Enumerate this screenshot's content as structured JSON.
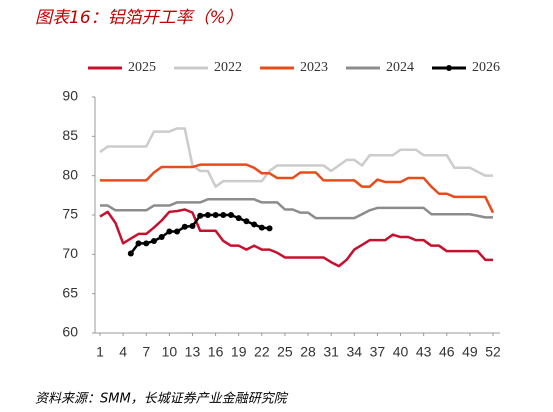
{
  "chart_data": {
    "type": "line",
    "title": "图表16：铝箔开工率（%）",
    "source": "资料来源：SMM，长城证券产业金融研究院",
    "x": [
      1,
      2,
      3,
      4,
      5,
      6,
      7,
      8,
      9,
      10,
      11,
      12,
      13,
      14,
      15,
      16,
      17,
      18,
      19,
      20,
      21,
      22,
      23,
      24,
      25,
      26,
      27,
      28,
      29,
      30,
      31,
      32,
      33,
      34,
      35,
      36,
      37,
      38,
      39,
      40,
      41,
      42,
      43,
      44,
      45,
      46,
      47,
      48,
      49,
      50,
      51,
      52
    ],
    "xlim": [
      1,
      52
    ],
    "xticks": [
      1,
      4,
      7,
      10,
      13,
      16,
      19,
      22,
      25,
      28,
      31,
      34,
      37,
      40,
      43,
      46,
      49,
      52
    ],
    "ylim": [
      60,
      90
    ],
    "yticks": [
      60,
      65,
      70,
      75,
      80,
      85,
      90
    ],
    "grid": false,
    "legend": "top",
    "series": [
      {
        "name": "2025",
        "color": "#c8102e",
        "marker": false,
        "values": [
          74.8,
          75.4,
          74,
          71.4,
          72,
          72.6,
          72.6,
          73.4,
          74.3,
          75.4,
          75.5,
          75.7,
          75.3,
          73,
          73,
          73,
          71.7,
          71.1,
          71.1,
          70.6,
          71.1,
          70.6,
          70.6,
          70.2,
          69.6,
          69.6,
          69.6,
          69.6,
          69.6,
          69.6,
          69,
          68.5,
          69.3,
          70.6,
          71.2,
          71.8,
          71.8,
          71.8,
          72.5,
          72.2,
          72.2,
          71.8,
          71.8,
          71.1,
          71.1,
          70.4,
          70.4,
          70.4,
          70.4,
          70.4,
          69.3,
          69.3
        ]
      },
      {
        "name": "2022",
        "color": "#cccccc",
        "marker": false,
        "values": [
          83,
          83.7,
          83.7,
          83.7,
          83.7,
          83.7,
          83.7,
          85.6,
          85.6,
          85.6,
          86,
          86,
          81.3,
          80.6,
          80.6,
          78.6,
          79.3,
          79.3,
          79.3,
          79.3,
          79.3,
          79.3,
          80.6,
          81.3,
          81.3,
          81.3,
          81.3,
          81.3,
          81.3,
          81.3,
          80.6,
          81.3,
          82,
          82,
          81.3,
          82.6,
          82.6,
          82.6,
          82.6,
          83.3,
          83.3,
          83.3,
          82.6,
          82.6,
          82.6,
          82.6,
          81,
          81,
          81,
          80.5,
          80,
          80
        ]
      },
      {
        "name": "2023",
        "color": "#e84c1b",
        "marker": false,
        "values": [
          79.4,
          79.4,
          79.4,
          79.4,
          79.4,
          79.4,
          79.4,
          80.4,
          81.1,
          81.1,
          81.1,
          81.1,
          81.1,
          81.4,
          81.4,
          81.4,
          81.4,
          81.4,
          81.4,
          81.4,
          81,
          80.3,
          80.3,
          79.7,
          79.7,
          79.7,
          80.4,
          80.4,
          80.4,
          79.4,
          79.4,
          79.4,
          79.4,
          79.4,
          78.6,
          78.6,
          79.5,
          79.2,
          79.2,
          79.2,
          79.7,
          79.7,
          79.7,
          78.6,
          77.7,
          77.7,
          77.3,
          77.3,
          77.3,
          77.3,
          77.3,
          75.3
        ]
      },
      {
        "name": "2024",
        "color": "#8c8c8c",
        "marker": false,
        "values": [
          76.2,
          76.2,
          75.6,
          75.6,
          75.6,
          75.6,
          75.6,
          76.2,
          76.2,
          76.2,
          76.6,
          76.6,
          76.6,
          76.6,
          77,
          77,
          77,
          77,
          77,
          77,
          77,
          76.6,
          76.6,
          76.6,
          75.7,
          75.7,
          75.3,
          75.3,
          74.6,
          74.6,
          74.6,
          74.6,
          74.6,
          74.6,
          75.1,
          75.6,
          75.9,
          75.9,
          75.9,
          75.9,
          75.9,
          75.9,
          75.9,
          75.1,
          75.1,
          75.1,
          75.1,
          75.1,
          75.1,
          74.9,
          74.7,
          74.7
        ]
      },
      {
        "name": "2026",
        "color": "#000000",
        "marker": true,
        "values": [
          null,
          null,
          null,
          null,
          70.1,
          71.4,
          71.4,
          71.7,
          72.2,
          72.9,
          72.9,
          73.5,
          73.6,
          74.9,
          75,
          75,
          75,
          75,
          74.6,
          74.2,
          73.8,
          73.4,
          73.3,
          null,
          null,
          null,
          null,
          null,
          null,
          null,
          null,
          null,
          null,
          null,
          null,
          null,
          null,
          null,
          null,
          null,
          null,
          null,
          null,
          null,
          null,
          null,
          null,
          null,
          null,
          null,
          null,
          null
        ]
      }
    ]
  }
}
